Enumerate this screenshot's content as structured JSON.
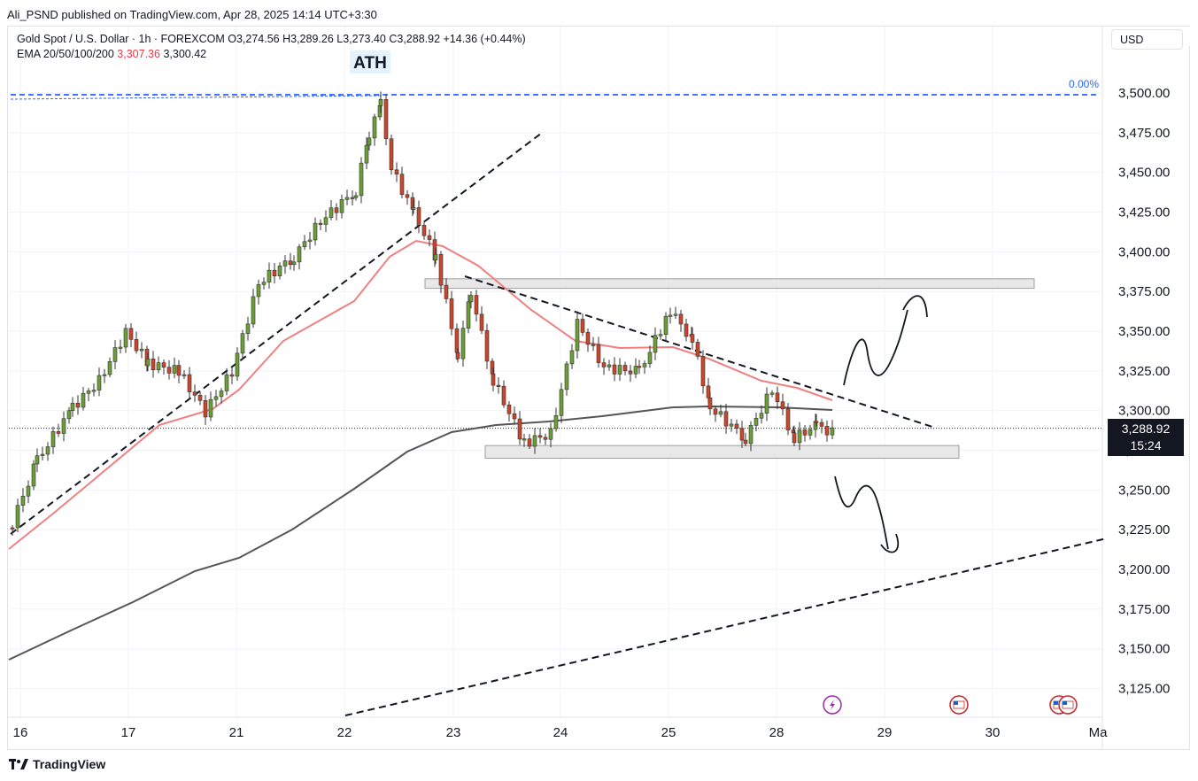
{
  "header": {
    "published": "Ali_PSND published on TradingView.com, Apr 28, 2025 14:14 UTC+3:30",
    "symbol_line": "Gold Spot / U.S. Dollar · 1h · FOREXCOM  O3,274.56  H3,289.26  L3,273.40  C3,288.92  +14.36 (+0.44%)",
    "ema_label": "EMA 20/50/100/200",
    "ema_value_1": "3,307.36",
    "ema_value_2": "3,300.42",
    "currency": "USD"
  },
  "chart_data": {
    "type": "candlestick",
    "y_axis": {
      "ticks": [
        "3,125.00",
        "3,150.00",
        "3,175.00",
        "3,200.00",
        "3,225.00",
        "3,250.00",
        "3,275.00",
        "3,300.00",
        "3,325.00",
        "3,350.00",
        "3,375.00",
        "3,400.00",
        "3,425.00",
        "3,450.00",
        "3,475.00",
        "3,500.00"
      ],
      "range": [
        3110,
        3525
      ]
    },
    "x_axis": {
      "ticks": [
        "16",
        "17",
        "21",
        "22",
        "23",
        "24",
        "25",
        "28",
        "29",
        "30",
        "Ma"
      ]
    },
    "last_price": "3,288.92",
    "countdown": "15:24",
    "fib_label": "0.00%",
    "fib_level": 3500,
    "annotation": "ATH",
    "zones": [
      {
        "name": "resistance",
        "low": 3377,
        "high": 3383
      },
      {
        "name": "support",
        "low": 3270,
        "high": 3278
      }
    ],
    "colors": {
      "up": "#6b9e36",
      "down": "#c9462b",
      "ema20": "#f08080",
      "ema200": "#555555",
      "fib": "#2962ff"
    }
  },
  "footer": {
    "brand": "TradingView"
  }
}
